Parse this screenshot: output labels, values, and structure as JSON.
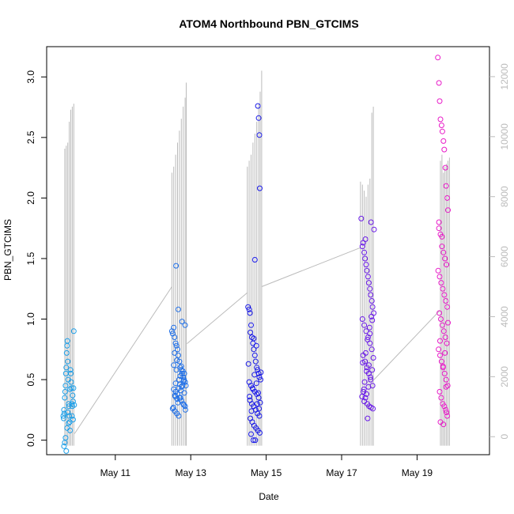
{
  "chart_data": {
    "type": "scatter",
    "title": "ATOM4 Northbound PBN_GTCIMS",
    "xlabel": "Date",
    "ylabel": "PBN_GTCIMS",
    "x_unit": "day of May",
    "x_ticks": [
      {
        "value": 11,
        "label": "May 11"
      },
      {
        "value": 13,
        "label": "May 13"
      },
      {
        "value": 15,
        "label": "May 15"
      },
      {
        "value": 17,
        "label": "May 17"
      },
      {
        "value": 19,
        "label": "May 19"
      }
    ],
    "xlim": [
      9.18,
      20.92
    ],
    "ylim": [
      -0.12,
      3.25
    ],
    "y_ticks": [
      {
        "value": 0.0,
        "label": "0.0"
      },
      {
        "value": 0.5,
        "label": "0.5"
      },
      {
        "value": 1.0,
        "label": "1.0"
      },
      {
        "value": 1.5,
        "label": "1.5"
      },
      {
        "value": 2.0,
        "label": "2.0"
      },
      {
        "value": 2.5,
        "label": "2.5"
      },
      {
        "value": 3.0,
        "label": "3.0"
      }
    ],
    "y2lim": [
      -600,
      13000
    ],
    "y2_ticks": [
      {
        "value": 0,
        "label": "0"
      },
      {
        "value": 2000,
        "label": "2000"
      },
      {
        "value": 4000,
        "label": "4000"
      },
      {
        "value": 6000,
        "label": "6000"
      },
      {
        "value": 8000,
        "label": "8000"
      },
      {
        "value": 10000,
        "label": "10000"
      },
      {
        "value": 12000,
        "label": "12000"
      }
    ],
    "grid": false,
    "colors": {
      "line": "#bbbbbb",
      "axis": "#000000",
      "right_axis": "#bbbbbb"
    },
    "series": [
      {
        "color": "#1a9ee8",
        "x": [
          9.62,
          9.63,
          9.64,
          9.65,
          9.66,
          9.67,
          9.68,
          9.69,
          9.7,
          9.71,
          9.72,
          9.73,
          9.74,
          9.75,
          9.76,
          9.77,
          9.78,
          9.79,
          9.8,
          9.81,
          9.82,
          9.83,
          9.84,
          9.85,
          9.86,
          9.87,
          9.88,
          9.89,
          9.9,
          9.91,
          9.64,
          9.66,
          9.68,
          9.7,
          9.72,
          9.74,
          9.76,
          9.8,
          9.85,
          9.88
        ],
        "y": [
          0.2,
          0.18,
          0.25,
          0.22,
          0.35,
          0.4,
          0.45,
          0.55,
          0.6,
          0.72,
          0.78,
          0.82,
          0.65,
          0.5,
          0.3,
          0.28,
          0.2,
          0.15,
          0.42,
          0.58,
          0.55,
          0.48,
          0.43,
          0.3,
          0.28,
          0.37,
          0.32,
          0.43,
          0.9,
          0.29,
          -0.05,
          -0.02,
          0.02,
          -0.09,
          0.1,
          0.23,
          0.14,
          0.08,
          0.2,
          0.17
        ]
      },
      {
        "color": "#1f6fe8",
        "x": [
          12.5,
          12.52,
          12.55,
          12.57,
          12.6,
          12.62,
          12.65,
          12.67,
          12.7,
          12.72,
          12.75,
          12.77,
          12.8,
          12.82,
          12.85,
          12.87,
          12.55,
          12.6,
          12.65,
          12.7,
          12.75,
          12.8,
          12.85,
          12.52,
          12.58,
          12.63,
          12.68,
          12.73,
          12.78,
          12.83,
          12.55,
          12.62,
          12.69,
          12.76,
          12.83,
          12.6,
          12.72,
          12.58,
          12.66,
          12.74,
          12.82,
          12.86,
          12.54,
          12.64,
          12.71,
          12.79,
          12.61,
          12.67,
          12.77,
          12.85,
          12.57,
          12.63,
          12.75,
          12.81,
          12.68,
          12.59
        ],
        "y": [
          0.9,
          0.88,
          0.93,
          0.85,
          0.8,
          0.78,
          0.75,
          0.7,
          0.65,
          0.6,
          0.58,
          0.55,
          0.52,
          0.5,
          0.48,
          0.45,
          0.42,
          0.4,
          0.38,
          0.35,
          0.33,
          0.3,
          0.28,
          0.26,
          0.24,
          0.22,
          0.2,
          0.35,
          0.45,
          0.55,
          0.62,
          0.58,
          0.5,
          0.44,
          0.39,
          0.47,
          0.53,
          0.37,
          0.31,
          0.41,
          0.29,
          0.25,
          0.27,
          0.34,
          0.46,
          0.57,
          1.44,
          1.08,
          0.98,
          0.95,
          0.72,
          0.66,
          0.61,
          0.49,
          0.43,
          0.36
        ]
      },
      {
        "color": "#1a1ae8",
        "x": [
          14.52,
          14.55,
          14.57,
          14.6,
          14.62,
          14.65,
          14.67,
          14.7,
          14.72,
          14.75,
          14.77,
          14.8,
          14.82,
          14.85,
          14.55,
          14.6,
          14.65,
          14.7,
          14.75,
          14.8,
          14.57,
          14.62,
          14.67,
          14.72,
          14.77,
          14.82,
          14.58,
          14.63,
          14.68,
          14.73,
          14.78,
          14.83,
          14.6,
          14.66,
          14.71,
          14.76,
          14.81,
          14.56,
          14.64,
          14.69,
          14.74,
          14.79,
          14.84,
          14.61,
          14.78,
          14.8,
          14.82,
          14.83,
          14.7,
          14.58,
          14.67,
          14.74,
          14.53,
          14.86
        ],
        "y": [
          1.1,
          1.08,
          1.05,
          0.95,
          0.85,
          0.8,
          0.75,
          0.7,
          0.65,
          0.6,
          0.58,
          0.55,
          0.52,
          0.5,
          0.48,
          0.45,
          0.42,
          0.4,
          0.38,
          0.35,
          0.33,
          0.3,
          0.28,
          0.25,
          0.22,
          0.2,
          0.18,
          0.15,
          0.12,
          0.1,
          0.08,
          0.06,
          0.05,
          0.0,
          0.0,
          0.3,
          0.26,
          0.36,
          0.43,
          0.54,
          0.47,
          0.39,
          0.31,
          0.24,
          2.76,
          2.66,
          2.52,
          2.08,
          1.49,
          0.89,
          0.84,
          0.78,
          0.63,
          0.56
        ]
      },
      {
        "color": "#6a1ae8",
        "x": [
          17.52,
          17.55,
          17.57,
          17.6,
          17.62,
          17.65,
          17.67,
          17.7,
          17.72,
          17.75,
          17.77,
          17.8,
          17.82,
          17.85,
          17.55,
          17.6,
          17.65,
          17.7,
          17.75,
          17.8,
          17.57,
          17.62,
          17.67,
          17.72,
          17.77,
          17.82,
          17.58,
          17.63,
          17.68,
          17.73,
          17.78,
          17.83,
          17.6,
          17.66,
          17.71,
          17.76,
          17.81,
          17.56,
          17.64,
          17.69,
          17.74,
          17.79,
          17.84,
          17.61,
          17.54,
          17.59,
          17.66,
          17.72,
          17.78,
          17.86,
          17.63,
          17.69,
          17.75,
          17.81
        ],
        "y": [
          1.83,
          1.6,
          1.63,
          1.55,
          1.5,
          1.45,
          1.4,
          1.35,
          1.3,
          1.25,
          1.2,
          1.15,
          1.1,
          1.05,
          1.0,
          0.95,
          0.9,
          0.85,
          0.8,
          0.75,
          0.7,
          0.65,
          0.6,
          0.55,
          0.5,
          0.45,
          0.4,
          0.35,
          0.3,
          0.28,
          0.27,
          0.26,
          0.32,
          0.38,
          0.44,
          0.52,
          0.58,
          0.64,
          0.72,
          0.83,
          0.93,
          1.02,
          0.68,
          0.48,
          0.36,
          0.42,
          0.57,
          0.62,
          1.8,
          1.74,
          1.66,
          0.18,
          0.88,
          0.99
        ]
      },
      {
        "color": "#e81ac8",
        "x": [
          19.55,
          19.58,
          19.6,
          19.62,
          19.65,
          19.67,
          19.7,
          19.72,
          19.75,
          19.77,
          19.8,
          19.82,
          19.58,
          19.62,
          19.66,
          19.7,
          19.74,
          19.78,
          19.56,
          19.6,
          19.64,
          19.68,
          19.72,
          19.76,
          19.8,
          19.59,
          19.63,
          19.67,
          19.71,
          19.75,
          19.79,
          19.57,
          19.61,
          19.65,
          19.69,
          19.73,
          19.77,
          19.81,
          19.6,
          19.64,
          19.68,
          19.72,
          19.76,
          19.8,
          19.62,
          19.7,
          19.78,
          19.58,
          19.66,
          19.74,
          19.82,
          19.61,
          19.69,
          19.77
        ],
        "y": [
          3.16,
          2.95,
          2.8,
          2.65,
          2.6,
          2.55,
          2.47,
          2.4,
          2.25,
          2.1,
          2.0,
          1.9,
          1.8,
          1.7,
          1.6,
          1.55,
          1.5,
          1.45,
          1.4,
          1.35,
          1.3,
          1.25,
          1.2,
          1.15,
          1.1,
          1.05,
          1.0,
          0.95,
          0.9,
          0.85,
          0.8,
          0.75,
          0.7,
          0.65,
          0.6,
          0.55,
          0.5,
          0.45,
          0.4,
          0.35,
          0.3,
          0.28,
          0.25,
          0.2,
          0.15,
          0.13,
          0.23,
          1.75,
          1.68,
          0.72,
          0.97,
          0.82,
          0.61,
          0.44
        ]
      }
    ],
    "line_series": {
      "color": "#bbbbbb",
      "y_axis": "right",
      "spikes": [
        {
          "x": 9.66,
          "y": 9600
        },
        {
          "x": 9.7,
          "y": 9700
        },
        {
          "x": 9.74,
          "y": 9800
        },
        {
          "x": 9.78,
          "y": 10500
        },
        {
          "x": 9.82,
          "y": 10900
        },
        {
          "x": 9.86,
          "y": 11000
        },
        {
          "x": 9.9,
          "y": 11100
        },
        {
          "x": 12.5,
          "y": 8800
        },
        {
          "x": 12.55,
          "y": 9000
        },
        {
          "x": 12.6,
          "y": 9400
        },
        {
          "x": 12.65,
          "y": 9800
        },
        {
          "x": 12.7,
          "y": 10200
        },
        {
          "x": 12.75,
          "y": 10600
        },
        {
          "x": 12.8,
          "y": 11000
        },
        {
          "x": 12.85,
          "y": 11300
        },
        {
          "x": 12.88,
          "y": 11800
        },
        {
          "x": 14.5,
          "y": 9000
        },
        {
          "x": 14.55,
          "y": 9200
        },
        {
          "x": 14.6,
          "y": 9400
        },
        {
          "x": 14.65,
          "y": 9800
        },
        {
          "x": 14.7,
          "y": 10100
        },
        {
          "x": 14.75,
          "y": 10500
        },
        {
          "x": 14.8,
          "y": 11100
        },
        {
          "x": 14.84,
          "y": 11500
        },
        {
          "x": 14.88,
          "y": 12200
        },
        {
          "x": 17.5,
          "y": 8500
        },
        {
          "x": 17.55,
          "y": 8400
        },
        {
          "x": 17.6,
          "y": 8200
        },
        {
          "x": 17.65,
          "y": 8000
        },
        {
          "x": 17.7,
          "y": 8400
        },
        {
          "x": 17.75,
          "y": 8600
        },
        {
          "x": 17.8,
          "y": 10800
        },
        {
          "x": 17.84,
          "y": 11000
        },
        {
          "x": 19.62,
          "y": 9200
        },
        {
          "x": 19.66,
          "y": 9400
        },
        {
          "x": 19.7,
          "y": 8800
        },
        {
          "x": 19.74,
          "y": 9000
        },
        {
          "x": 19.78,
          "y": 9100
        },
        {
          "x": 19.82,
          "y": 9200
        },
        {
          "x": 19.86,
          "y": 9300
        }
      ],
      "base": -300,
      "connectors": [
        {
          "x1": 9.92,
          "y1": 100,
          "x2": 12.5,
          "y2": 5000
        },
        {
          "x1": 12.9,
          "y1": 3100,
          "x2": 14.5,
          "y2": 4800
        },
        {
          "x1": 14.88,
          "y1": 5000,
          "x2": 17.5,
          "y2": 6300
        },
        {
          "x1": 17.86,
          "y1": 1900,
          "x2": 19.6,
          "y2": 4200
        }
      ]
    }
  }
}
